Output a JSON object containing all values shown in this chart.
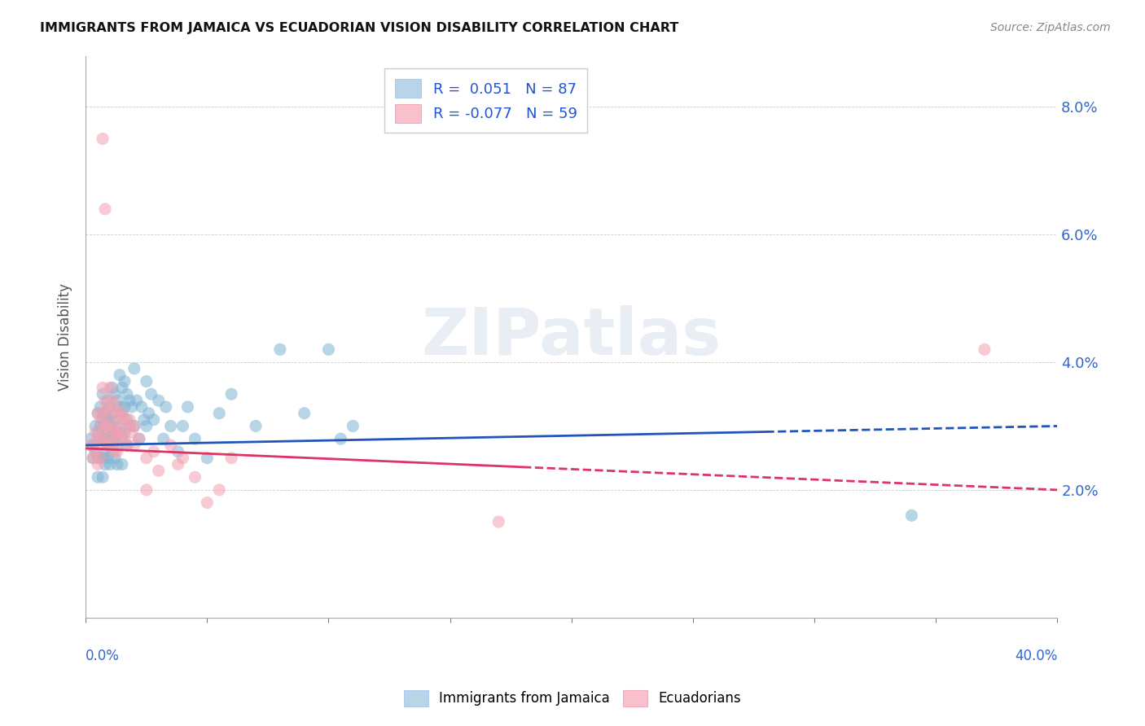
{
  "title": "IMMIGRANTS FROM JAMAICA VS ECUADORIAN VISION DISABILITY CORRELATION CHART",
  "source": "Source: ZipAtlas.com",
  "ylabel": "Vision Disability",
  "xlim": [
    0.0,
    0.4
  ],
  "ylim": [
    0.0,
    0.088
  ],
  "yticks": [
    0.02,
    0.04,
    0.06,
    0.08
  ],
  "ytick_labels": [
    "2.0%",
    "4.0%",
    "6.0%",
    "8.0%"
  ],
  "xticks": [
    0.0,
    0.05,
    0.1,
    0.15,
    0.2,
    0.25,
    0.3,
    0.35,
    0.4
  ],
  "r_blue": 0.051,
  "n_blue": 87,
  "r_pink": -0.077,
  "n_pink": 59,
  "blue_color": "#7fb3d3",
  "pink_color": "#f4a0b0",
  "legend_blue_face": "#b8d4e8",
  "legend_pink_face": "#f8c0cc",
  "trend_blue": "#2255bb",
  "trend_pink": "#dd3366",
  "watermark_color": "#e8eef4",
  "blue_scatter": [
    [
      0.002,
      0.028
    ],
    [
      0.003,
      0.027
    ],
    [
      0.003,
      0.025
    ],
    [
      0.004,
      0.03
    ],
    [
      0.004,
      0.026
    ],
    [
      0.005,
      0.032
    ],
    [
      0.005,
      0.029
    ],
    [
      0.005,
      0.025
    ],
    [
      0.005,
      0.022
    ],
    [
      0.006,
      0.033
    ],
    [
      0.006,
      0.03
    ],
    [
      0.006,
      0.028
    ],
    [
      0.006,
      0.025
    ],
    [
      0.007,
      0.035
    ],
    [
      0.007,
      0.031
    ],
    [
      0.007,
      0.028
    ],
    [
      0.007,
      0.025
    ],
    [
      0.007,
      0.022
    ],
    [
      0.008,
      0.032
    ],
    [
      0.008,
      0.029
    ],
    [
      0.008,
      0.026
    ],
    [
      0.008,
      0.024
    ],
    [
      0.009,
      0.034
    ],
    [
      0.009,
      0.031
    ],
    [
      0.009,
      0.028
    ],
    [
      0.009,
      0.025
    ],
    [
      0.01,
      0.033
    ],
    [
      0.01,
      0.03
    ],
    [
      0.01,
      0.027
    ],
    [
      0.01,
      0.024
    ],
    [
      0.011,
      0.036
    ],
    [
      0.011,
      0.032
    ],
    [
      0.011,
      0.029
    ],
    [
      0.011,
      0.026
    ],
    [
      0.012,
      0.035
    ],
    [
      0.012,
      0.031
    ],
    [
      0.012,
      0.028
    ],
    [
      0.012,
      0.025
    ],
    [
      0.013,
      0.034
    ],
    [
      0.013,
      0.03
    ],
    [
      0.013,
      0.027
    ],
    [
      0.013,
      0.024
    ],
    [
      0.014,
      0.038
    ],
    [
      0.014,
      0.033
    ],
    [
      0.014,
      0.029
    ],
    [
      0.015,
      0.036
    ],
    [
      0.015,
      0.032
    ],
    [
      0.015,
      0.028
    ],
    [
      0.015,
      0.024
    ],
    [
      0.016,
      0.037
    ],
    [
      0.016,
      0.033
    ],
    [
      0.016,
      0.029
    ],
    [
      0.017,
      0.035
    ],
    [
      0.017,
      0.031
    ],
    [
      0.017,
      0.027
    ],
    [
      0.018,
      0.034
    ],
    [
      0.018,
      0.03
    ],
    [
      0.019,
      0.033
    ],
    [
      0.02,
      0.039
    ],
    [
      0.02,
      0.03
    ],
    [
      0.021,
      0.034
    ],
    [
      0.022,
      0.028
    ],
    [
      0.023,
      0.033
    ],
    [
      0.024,
      0.031
    ],
    [
      0.025,
      0.037
    ],
    [
      0.025,
      0.03
    ],
    [
      0.026,
      0.032
    ],
    [
      0.027,
      0.035
    ],
    [
      0.028,
      0.031
    ],
    [
      0.03,
      0.034
    ],
    [
      0.032,
      0.028
    ],
    [
      0.033,
      0.033
    ],
    [
      0.035,
      0.03
    ],
    [
      0.038,
      0.026
    ],
    [
      0.04,
      0.03
    ],
    [
      0.042,
      0.033
    ],
    [
      0.045,
      0.028
    ],
    [
      0.05,
      0.025
    ],
    [
      0.055,
      0.032
    ],
    [
      0.06,
      0.035
    ],
    [
      0.07,
      0.03
    ],
    [
      0.08,
      0.042
    ],
    [
      0.09,
      0.032
    ],
    [
      0.1,
      0.042
    ],
    [
      0.105,
      0.028
    ],
    [
      0.11,
      0.03
    ],
    [
      0.34,
      0.016
    ]
  ],
  "pink_scatter": [
    [
      0.002,
      0.027
    ],
    [
      0.003,
      0.025
    ],
    [
      0.004,
      0.029
    ],
    [
      0.004,
      0.026
    ],
    [
      0.005,
      0.032
    ],
    [
      0.005,
      0.028
    ],
    [
      0.005,
      0.024
    ],
    [
      0.006,
      0.031
    ],
    [
      0.006,
      0.028
    ],
    [
      0.006,
      0.025
    ],
    [
      0.007,
      0.075
    ],
    [
      0.007,
      0.036
    ],
    [
      0.007,
      0.032
    ],
    [
      0.007,
      0.029
    ],
    [
      0.008,
      0.064
    ],
    [
      0.008,
      0.034
    ],
    [
      0.008,
      0.03
    ],
    [
      0.008,
      0.027
    ],
    [
      0.009,
      0.033
    ],
    [
      0.009,
      0.03
    ],
    [
      0.009,
      0.027
    ],
    [
      0.01,
      0.036
    ],
    [
      0.01,
      0.032
    ],
    [
      0.01,
      0.028
    ],
    [
      0.011,
      0.034
    ],
    [
      0.011,
      0.03
    ],
    [
      0.011,
      0.027
    ],
    [
      0.012,
      0.033
    ],
    [
      0.012,
      0.029
    ],
    [
      0.012,
      0.026
    ],
    [
      0.013,
      0.032
    ],
    [
      0.013,
      0.029
    ],
    [
      0.013,
      0.026
    ],
    [
      0.014,
      0.031
    ],
    [
      0.014,
      0.028
    ],
    [
      0.015,
      0.032
    ],
    [
      0.015,
      0.029
    ],
    [
      0.016,
      0.031
    ],
    [
      0.016,
      0.028
    ],
    [
      0.017,
      0.03
    ],
    [
      0.017,
      0.027
    ],
    [
      0.018,
      0.031
    ],
    [
      0.019,
      0.029
    ],
    [
      0.02,
      0.03
    ],
    [
      0.02,
      0.027
    ],
    [
      0.022,
      0.028
    ],
    [
      0.025,
      0.025
    ],
    [
      0.025,
      0.02
    ],
    [
      0.028,
      0.026
    ],
    [
      0.03,
      0.023
    ],
    [
      0.035,
      0.027
    ],
    [
      0.038,
      0.024
    ],
    [
      0.04,
      0.025
    ],
    [
      0.045,
      0.022
    ],
    [
      0.05,
      0.018
    ],
    [
      0.055,
      0.02
    ],
    [
      0.06,
      0.025
    ],
    [
      0.37,
      0.042
    ],
    [
      0.17,
      0.015
    ]
  ]
}
